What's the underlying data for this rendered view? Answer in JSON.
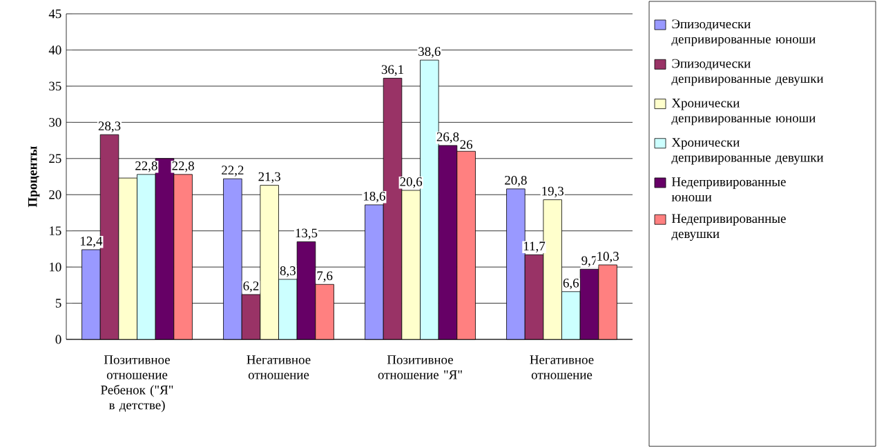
{
  "chart_data": {
    "type": "bar",
    "ylabel": "Проценты",
    "categories": [
      "Позитивное отношение Ребенок (\"Я\" в детстве)",
      "Негативное отношение",
      "Позитивное отношение \"Я\"",
      "Негативное отношение"
    ],
    "series": [
      {
        "name": "Эпизодически депривированные юноши",
        "color": "#9999ff",
        "values": [
          12.4,
          22.2,
          18.6,
          20.8
        ],
        "value_labels": [
          "12,4",
          "22,2",
          "18,6",
          "20,8"
        ]
      },
      {
        "name": "Эпизодически депривированные девушки",
        "color": "#993366",
        "values": [
          28.3,
          6.2,
          36.1,
          11.7
        ],
        "value_labels": [
          "28,3",
          "6,2",
          "36,1",
          "11,7"
        ]
      },
      {
        "name": "Хронически депривированные юноши",
        "color": "#ffffcc",
        "values": [
          22.3,
          21.3,
          20.6,
          19.3
        ],
        "value_labels": [
          null,
          "21,3",
          "20,6",
          "19,3"
        ]
      },
      {
        "name": "Хронически депривированные девушки",
        "color": "#ccffff",
        "values": [
          22.8,
          8.3,
          38.6,
          6.6
        ],
        "value_labels": [
          "22,8",
          "8,3",
          "38,6",
          "6,6"
        ]
      },
      {
        "name": "Недепривированные юноши",
        "color": "#660066",
        "values": [
          25.0,
          13.5,
          26.8,
          9.7
        ],
        "value_labels": [
          null,
          "13,5",
          "26,8",
          "9,7"
        ]
      },
      {
        "name": "Недепривированные девушки",
        "color": "#ff8080",
        "values": [
          22.8,
          7.6,
          26,
          10.3
        ],
        "value_labels": [
          "22,8",
          "7,6",
          "26",
          "10,3"
        ]
      }
    ],
    "ylim": [
      0,
      45
    ],
    "yticks": [
      0,
      5,
      10,
      15,
      20,
      25,
      30,
      35,
      40,
      45
    ],
    "grid": "y",
    "legend": "right"
  }
}
